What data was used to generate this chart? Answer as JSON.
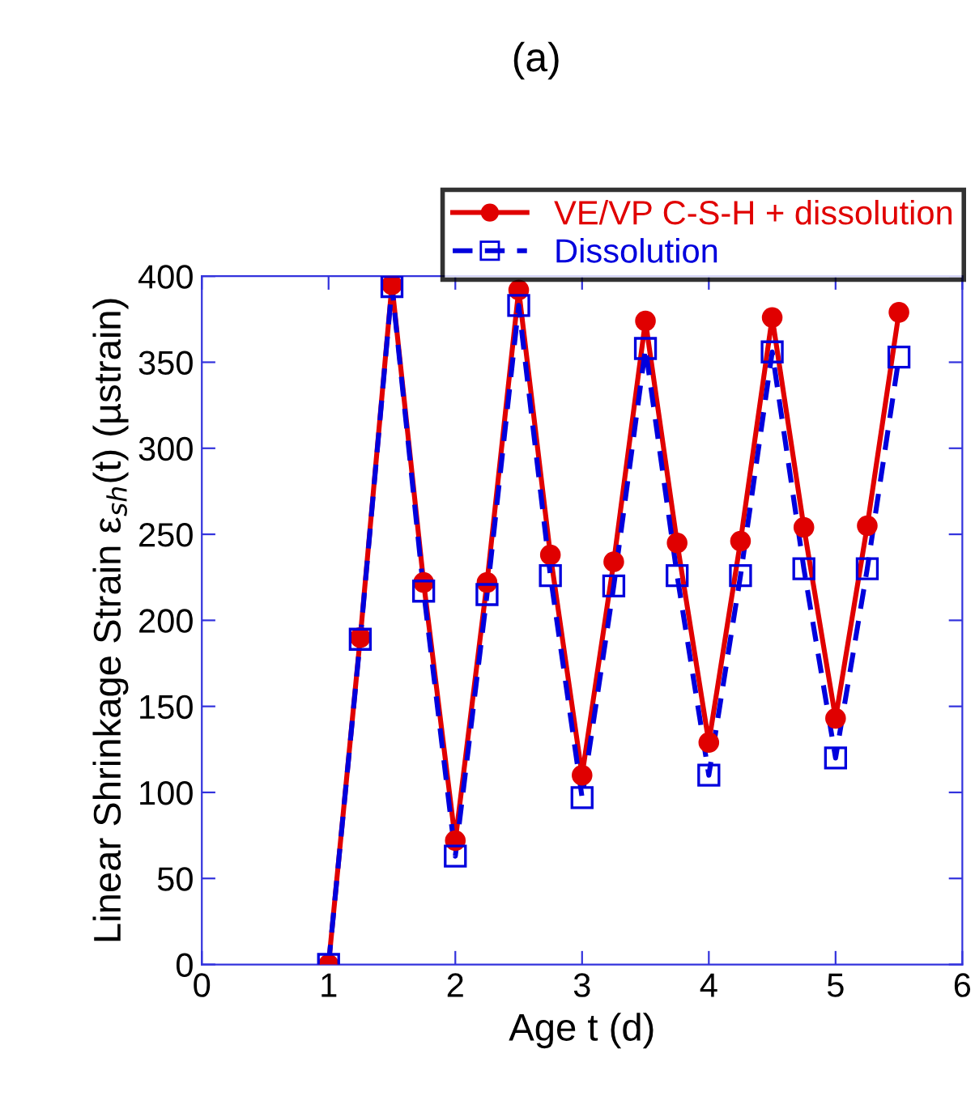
{
  "chart_data": {
    "type": "line",
    "title": "(a)",
    "xlabel": "Age t (d)",
    "ylabel": "Linear Shrinkage Strain ε$_{sh}$(t) (µstrain)",
    "x": [
      1,
      1.25,
      1.5,
      1.75,
      2,
      2.25,
      2.5,
      2.75,
      3,
      3.25,
      3.5,
      3.75,
      4,
      4.25,
      4.5,
      4.75,
      5,
      5.25,
      5.5
    ],
    "series": [
      {
        "name": "VE/VP C-S-H + dissolution",
        "color": "#e00000",
        "marker": "circle",
        "line_style": "solid",
        "values": [
          0,
          190,
          395,
          222,
          72,
          222,
          392,
          238,
          110,
          234,
          374,
          245,
          129,
          246,
          376,
          254,
          143,
          255,
          379
        ]
      },
      {
        "name": "Dissolution",
        "color": "#0000dd",
        "marker": "square",
        "line_style": "dashed",
        "values": [
          0,
          189,
          394,
          217,
          63,
          215,
          383,
          226,
          97,
          220,
          358,
          226,
          110,
          226,
          356,
          230,
          120,
          230,
          353
        ]
      }
    ],
    "xlim": [
      0,
      6
    ],
    "xticks": [
      0,
      1,
      2,
      3,
      4,
      5,
      6
    ],
    "ylim": [
      0,
      400
    ],
    "yticks": [
      0,
      50,
      100,
      150,
      200,
      250,
      300,
      350,
      400
    ],
    "grid": false,
    "legend": "top right"
  }
}
